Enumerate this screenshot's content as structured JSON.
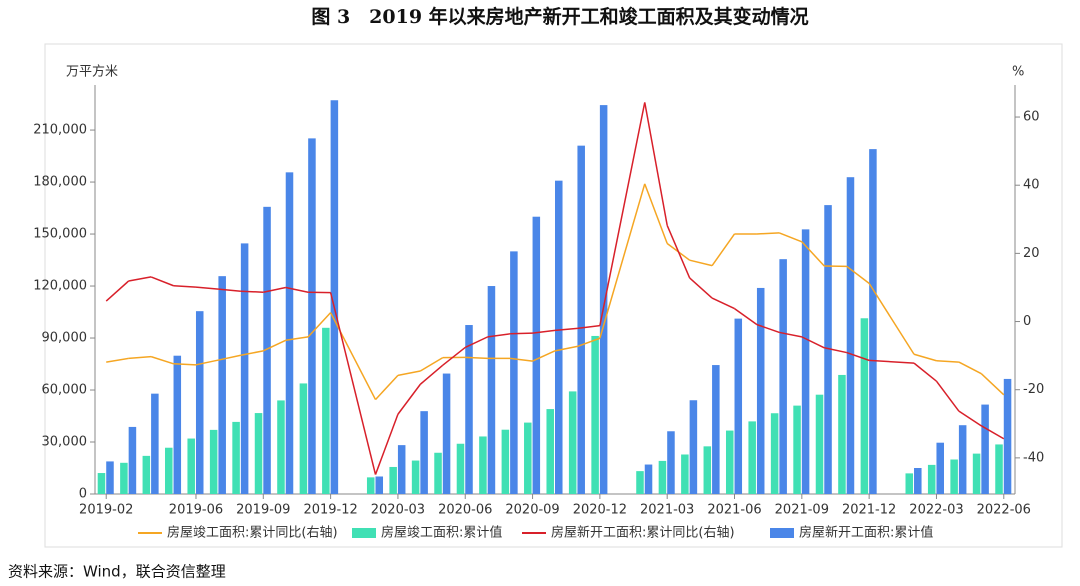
{
  "chart_data": {
    "type": "bar",
    "title": "图 3　2019 年以来房地产新开工和竣工面积及其变动情况",
    "y_label": "万平方米",
    "y2_label": "%",
    "source": "资料来源：Wind，联合资信整理",
    "categories": [
      "2019-02",
      null,
      null,
      null,
      "2019-06",
      null,
      null,
      "2019-09",
      null,
      null,
      "2019-12",
      null,
      null,
      "2020-03",
      null,
      null,
      "2020-06",
      null,
      null,
      "2020-09",
      null,
      null,
      "2020-12",
      null,
      null,
      "2021-03",
      null,
      null,
      "2021-06",
      null,
      null,
      "2021-09",
      null,
      null,
      "2021-12",
      null,
      null,
      "2022-03",
      null,
      null,
      "2022-06"
    ],
    "series": [
      {
        "name": "房屋竣工面积:累计同比(右轴)",
        "type": "line",
        "axis": "y2",
        "color": "#f5a623",
        "values": [
          -11.9,
          -10.8,
          -10.3,
          -12.4,
          -12.7,
          -11.3,
          -9.9,
          -8.6,
          -5.5,
          -4.5,
          2.6,
          null,
          -22.9,
          -15.8,
          -14.5,
          -10.6,
          -10.5,
          -10.8,
          -10.8,
          -11.6,
          -8.6,
          -7.3,
          -4.9,
          null,
          40.4,
          22.9,
          18.0,
          16.4,
          25.7,
          25.7,
          26.0,
          23.4,
          16.3,
          16.2,
          11.2,
          null,
          -9.6,
          -11.5,
          -11.9,
          -15.3,
          -21.5
        ]
      },
      {
        "name": "房屋竣工面积:累计值",
        "type": "bar",
        "color": "#40e0b4",
        "values": [
          12100,
          18000,
          22000,
          26700,
          32000,
          37000,
          41600,
          46700,
          54000,
          63800,
          95900,
          null,
          9600,
          15600,
          19300,
          23800,
          29000,
          33200,
          37100,
          41200,
          49000,
          59200,
          91200,
          null,
          13200,
          19100,
          22800,
          27500,
          36600,
          41900,
          46600,
          51000,
          57300,
          68700,
          101400,
          null,
          11900,
          16800,
          19900,
          23300,
          28600
        ]
      },
      {
        "name": "房屋新开工面积:累计同比(右轴)",
        "type": "line",
        "axis": "y2",
        "color": "#d8202a",
        "values": [
          6.0,
          11.9,
          13.1,
          10.5,
          10.1,
          9.5,
          8.9,
          8.6,
          10.0,
          8.6,
          8.5,
          null,
          -44.9,
          -27.2,
          -18.4,
          -12.8,
          -7.6,
          -4.5,
          -3.6,
          -3.4,
          -2.6,
          -2.0,
          -1.2,
          null,
          64.3,
          28.2,
          12.8,
          6.9,
          3.8,
          -0.9,
          -3.2,
          -4.5,
          -7.7,
          -9.1,
          -11.4,
          null,
          -12.2,
          -17.5,
          -26.3,
          -30.6,
          -34.4
        ]
      },
      {
        "name": "房屋新开工面积:累计值",
        "type": "bar",
        "color": "#4a86e8",
        "values": [
          18800,
          38700,
          57900,
          79800,
          105500,
          125700,
          144600,
          165700,
          185600,
          205200,
          227200,
          null,
          10100,
          28200,
          47800,
          69500,
          97500,
          120000,
          140000,
          160000,
          180800,
          201000,
          224400,
          null,
          17000,
          36200,
          54100,
          74400,
          101200,
          118900,
          135500,
          152700,
          166700,
          182800,
          199000,
          null,
          15000,
          29600,
          39700,
          51600,
          66400
        ]
      }
    ],
    "ylim": [
      0,
      236000
    ],
    "yticks": [
      0,
      {
        "value": 30000,
        "label": "30,000"
      },
      {
        "value": 60000,
        "label": "60,000"
      },
      {
        "value": 90000,
        "label": "90,000"
      },
      {
        "value": 120000,
        "label": "120,000"
      },
      {
        "value": 150000,
        "label": "150,000"
      },
      {
        "value": 180000,
        "label": "180,000"
      },
      {
        "value": 210000,
        "label": "210,000"
      }
    ],
    "y2lim": [
      -50.6,
      69.4
    ],
    "y2ticks": [
      -40,
      -20,
      0,
      20,
      40,
      60
    ]
  }
}
